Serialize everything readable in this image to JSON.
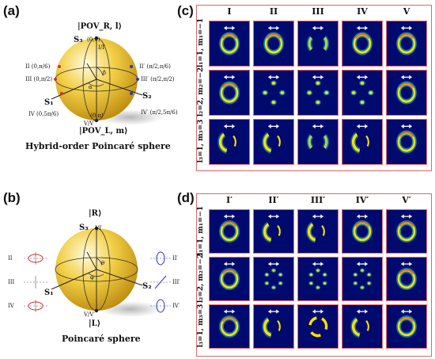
{
  "panel_a": {
    "letter": "(a)",
    "caption": "Hybrid-order Poincaré sphere",
    "north_state": "|POV_R, l⟩",
    "south_state": "|POV_L, m⟩",
    "s3": "S₃",
    "s1": "S₁",
    "s2": "S₂",
    "north_coord": "(0,0)",
    "south_coord": "(0,π)",
    "top_mark": "I/I′",
    "bottom_mark": "V/V′",
    "alpha": "α",
    "beta": "β",
    "left_points": [
      "II (0,π/6)",
      "III (0,π/2)",
      "IV (0,5π/6)"
    ],
    "right_points": [
      "II′ (π/2,π/6)",
      "III′ (π/2,π/2)",
      "IV′ (π/2,5π/6)"
    ]
  },
  "panel_b": {
    "letter": "(b)",
    "caption": "Poincaré sphere",
    "north_state": "|R⟩",
    "south_state": "|L⟩",
    "s3": "S₃",
    "s1": "S₁",
    "s2": "S₂",
    "top_mark": "I/I′",
    "bottom_mark": "V/V′",
    "theta": "θ",
    "phi": "φ",
    "left_points": [
      "II",
      "III",
      "IV"
    ],
    "right_points": [
      "II′",
      "III′",
      "IV′"
    ]
  },
  "panel_c": {
    "letter": "(c)",
    "columns": [
      "I",
      "II",
      "III",
      "IV",
      "V"
    ],
    "rows": [
      "l₁=1, m₁=−1",
      "l₂=2, m₂=−2",
      "l₃=1, m₃=3"
    ]
  },
  "panel_d": {
    "letter": "(d)",
    "columns": [
      "I′",
      "II′",
      "III′",
      "IV′",
      "V′"
    ],
    "rows": [
      "l₁=1, m₁=−1",
      "l₂=2, m₂=−2",
      "l₃=1, m₃=3"
    ]
  },
  "colors": {
    "sphere_light": "#fff3b0",
    "sphere_dark": "#c79a10",
    "cell_bg": "#000a6e",
    "grid_border": "#e06666",
    "ring": "#ffe000"
  }
}
